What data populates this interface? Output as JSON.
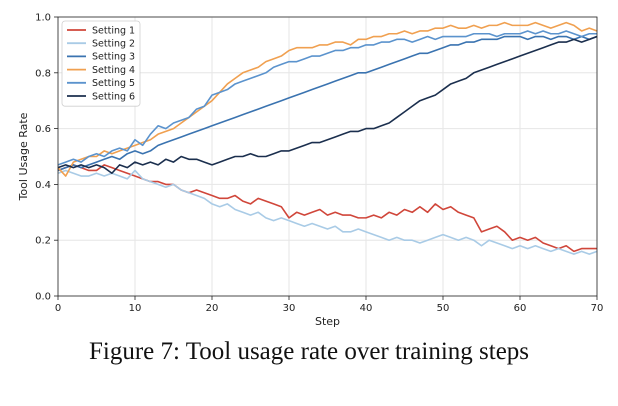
{
  "caption": "Figure 7:  Tool usage rate over training steps",
  "chart_data": {
    "type": "line",
    "title": "",
    "xlabel": "Step",
    "ylabel": "Tool Usage Rate",
    "xlim": [
      0,
      70
    ],
    "ylim": [
      0.0,
      1.0
    ],
    "xticks": [
      0,
      10,
      20,
      30,
      40,
      50,
      60,
      70
    ],
    "yticks": [
      0.0,
      0.2,
      0.4,
      0.6,
      0.8,
      1.0
    ],
    "xtick_labels": [
      "0",
      "10",
      "20",
      "30",
      "40",
      "50",
      "60",
      "70"
    ],
    "ytick_labels": [
      "0.0",
      "0.2",
      "0.4",
      "0.6",
      "0.8",
      "1.0"
    ],
    "grid": true,
    "legend": "top-left",
    "x": [
      0,
      1,
      2,
      3,
      4,
      5,
      6,
      7,
      8,
      9,
      10,
      11,
      12,
      13,
      14,
      15,
      16,
      17,
      18,
      19,
      20,
      21,
      22,
      23,
      24,
      25,
      26,
      27,
      28,
      29,
      30,
      31,
      32,
      33,
      34,
      35,
      36,
      37,
      38,
      39,
      40,
      41,
      42,
      43,
      44,
      45,
      46,
      47,
      48,
      49,
      50,
      51,
      52,
      53,
      54,
      55,
      56,
      57,
      58,
      59,
      60,
      61,
      62,
      63,
      64,
      65,
      66,
      67,
      68,
      69,
      70
    ],
    "series": [
      {
        "name": "Setting 1",
        "color": "#d0463a",
        "values": [
          0.45,
          0.46,
          0.47,
          0.46,
          0.45,
          0.45,
          0.47,
          0.46,
          0.45,
          0.44,
          0.43,
          0.42,
          0.41,
          0.41,
          0.4,
          0.4,
          0.38,
          0.37,
          0.38,
          0.37,
          0.36,
          0.35,
          0.35,
          0.36,
          0.34,
          0.33,
          0.35,
          0.34,
          0.33,
          0.32,
          0.28,
          0.3,
          0.29,
          0.3,
          0.31,
          0.29,
          0.3,
          0.29,
          0.29,
          0.28,
          0.28,
          0.29,
          0.28,
          0.3,
          0.29,
          0.31,
          0.3,
          0.32,
          0.3,
          0.33,
          0.31,
          0.32,
          0.3,
          0.29,
          0.28,
          0.23,
          0.24,
          0.25,
          0.23,
          0.2,
          0.21,
          0.2,
          0.21,
          0.19,
          0.18,
          0.17,
          0.18,
          0.16,
          0.17,
          0.17,
          0.17
        ]
      },
      {
        "name": "Setting 2",
        "color": "#a9cbe6",
        "values": [
          0.44,
          0.45,
          0.44,
          0.43,
          0.43,
          0.44,
          0.43,
          0.44,
          0.43,
          0.42,
          0.45,
          0.42,
          0.41,
          0.4,
          0.39,
          0.4,
          0.38,
          0.37,
          0.36,
          0.35,
          0.33,
          0.32,
          0.33,
          0.31,
          0.3,
          0.29,
          0.3,
          0.28,
          0.27,
          0.28,
          0.27,
          0.26,
          0.25,
          0.26,
          0.25,
          0.24,
          0.25,
          0.23,
          0.23,
          0.24,
          0.23,
          0.22,
          0.21,
          0.2,
          0.21,
          0.2,
          0.2,
          0.19,
          0.2,
          0.21,
          0.22,
          0.21,
          0.2,
          0.21,
          0.2,
          0.18,
          0.2,
          0.19,
          0.18,
          0.17,
          0.18,
          0.17,
          0.18,
          0.17,
          0.16,
          0.17,
          0.16,
          0.15,
          0.16,
          0.15,
          0.16
        ]
      },
      {
        "name": "Setting 3",
        "color": "#3a73b0",
        "values": [
          0.45,
          0.46,
          0.47,
          0.46,
          0.47,
          0.48,
          0.49,
          0.5,
          0.49,
          0.51,
          0.52,
          0.51,
          0.52,
          0.54,
          0.55,
          0.56,
          0.57,
          0.58,
          0.59,
          0.6,
          0.61,
          0.62,
          0.63,
          0.64,
          0.65,
          0.66,
          0.67,
          0.68,
          0.69,
          0.7,
          0.71,
          0.72,
          0.73,
          0.74,
          0.75,
          0.76,
          0.77,
          0.78,
          0.79,
          0.8,
          0.8,
          0.81,
          0.82,
          0.83,
          0.84,
          0.85,
          0.86,
          0.87,
          0.87,
          0.88,
          0.89,
          0.9,
          0.9,
          0.91,
          0.91,
          0.92,
          0.92,
          0.92,
          0.93,
          0.93,
          0.93,
          0.92,
          0.93,
          0.93,
          0.92,
          0.93,
          0.93,
          0.92,
          0.93,
          0.92,
          0.93
        ]
      },
      {
        "name": "Setting 4",
        "color": "#f0a050",
        "values": [
          0.46,
          0.43,
          0.48,
          0.49,
          0.5,
          0.5,
          0.52,
          0.51,
          0.52,
          0.53,
          0.54,
          0.55,
          0.56,
          0.58,
          0.59,
          0.6,
          0.62,
          0.64,
          0.66,
          0.68,
          0.7,
          0.73,
          0.76,
          0.78,
          0.8,
          0.81,
          0.82,
          0.84,
          0.85,
          0.86,
          0.88,
          0.89,
          0.89,
          0.89,
          0.9,
          0.9,
          0.91,
          0.91,
          0.9,
          0.92,
          0.92,
          0.93,
          0.93,
          0.94,
          0.94,
          0.95,
          0.94,
          0.95,
          0.95,
          0.96,
          0.96,
          0.97,
          0.96,
          0.96,
          0.97,
          0.96,
          0.97,
          0.97,
          0.98,
          0.97,
          0.97,
          0.97,
          0.98,
          0.97,
          0.96,
          0.97,
          0.98,
          0.97,
          0.95,
          0.96,
          0.95
        ]
      },
      {
        "name": "Setting 5",
        "color": "#5b93cd",
        "values": [
          0.47,
          0.48,
          0.49,
          0.48,
          0.5,
          0.51,
          0.5,
          0.52,
          0.53,
          0.52,
          0.56,
          0.54,
          0.58,
          0.61,
          0.6,
          0.62,
          0.63,
          0.64,
          0.67,
          0.68,
          0.72,
          0.73,
          0.74,
          0.76,
          0.77,
          0.78,
          0.79,
          0.8,
          0.82,
          0.83,
          0.84,
          0.84,
          0.85,
          0.86,
          0.86,
          0.87,
          0.88,
          0.88,
          0.89,
          0.89,
          0.9,
          0.9,
          0.91,
          0.91,
          0.92,
          0.92,
          0.91,
          0.92,
          0.93,
          0.92,
          0.93,
          0.93,
          0.93,
          0.93,
          0.94,
          0.94,
          0.94,
          0.93,
          0.94,
          0.94,
          0.94,
          0.95,
          0.94,
          0.95,
          0.94,
          0.94,
          0.95,
          0.94,
          0.93,
          0.94,
          0.94
        ]
      },
      {
        "name": "Setting 6",
        "color": "#1b2f4e",
        "values": [
          0.46,
          0.47,
          0.46,
          0.47,
          0.46,
          0.47,
          0.46,
          0.44,
          0.47,
          0.46,
          0.48,
          0.47,
          0.48,
          0.47,
          0.49,
          0.48,
          0.5,
          0.49,
          0.49,
          0.48,
          0.47,
          0.48,
          0.49,
          0.5,
          0.5,
          0.51,
          0.5,
          0.5,
          0.51,
          0.52,
          0.52,
          0.53,
          0.54,
          0.55,
          0.55,
          0.56,
          0.57,
          0.58,
          0.59,
          0.59,
          0.6,
          0.6,
          0.61,
          0.62,
          0.64,
          0.66,
          0.68,
          0.7,
          0.71,
          0.72,
          0.74,
          0.76,
          0.77,
          0.78,
          0.8,
          0.81,
          0.82,
          0.83,
          0.84,
          0.85,
          0.86,
          0.87,
          0.88,
          0.89,
          0.9,
          0.91,
          0.91,
          0.92,
          0.91,
          0.92,
          0.93
        ]
      }
    ]
  }
}
